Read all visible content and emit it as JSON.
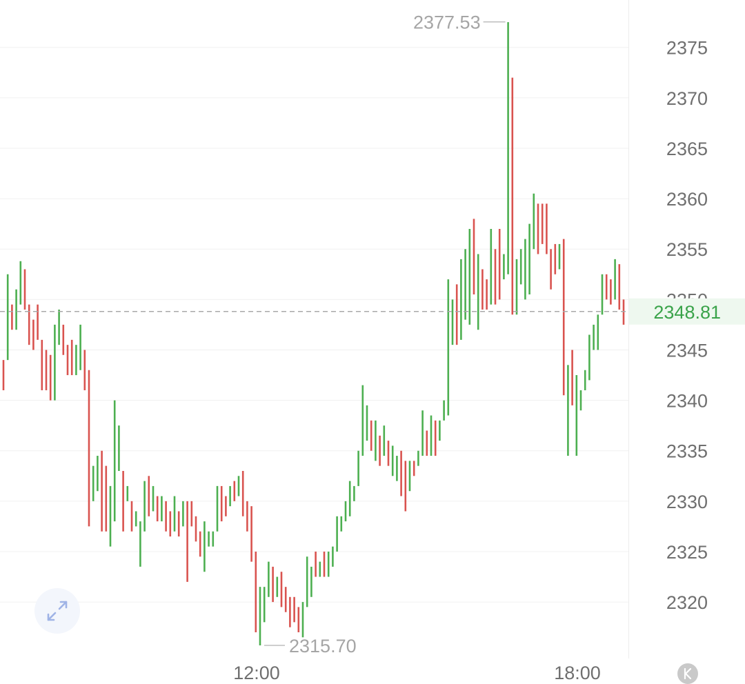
{
  "chart_data": {
    "type": "ohlc",
    "ylim": [
      2314.4,
      2379.7
    ],
    "y_ticks": [
      "2320",
      "2325",
      "2330",
      "2335",
      "2340",
      "2345",
      "2350",
      "2355",
      "2360",
      "2365",
      "2370",
      "2375"
    ],
    "x_ticks": [
      "12:00",
      "18:00"
    ],
    "current_price": "2348.81",
    "max_label": "2377.53",
    "min_label": "2315.70",
    "up_color": "#4caf50",
    "down_color": "#d9534f",
    "bars": [
      {
        "high": 2344.0,
        "low": 2341.0,
        "dir": "down"
      },
      {
        "high": 2352.5,
        "low": 2344.0,
        "dir": "up"
      },
      {
        "high": 2349.5,
        "low": 2347.0,
        "dir": "down"
      },
      {
        "high": 2351.0,
        "low": 2347.0,
        "dir": "up"
      },
      {
        "high": 2353.8,
        "low": 2349.5,
        "dir": "up"
      },
      {
        "high": 2353.0,
        "low": 2349.0,
        "dir": "down"
      },
      {
        "high": 2349.5,
        "low": 2345.5,
        "dir": "down"
      },
      {
        "high": 2348.0,
        "low": 2345.0,
        "dir": "down"
      },
      {
        "high": 2349.5,
        "low": 2346.0,
        "dir": "down"
      },
      {
        "high": 2346.0,
        "low": 2341.0,
        "dir": "down"
      },
      {
        "high": 2345.0,
        "low": 2341.0,
        "dir": "down"
      },
      {
        "high": 2344.5,
        "low": 2340.0,
        "dir": "down"
      },
      {
        "high": 2347.5,
        "low": 2340.0,
        "dir": "up"
      },
      {
        "high": 2349.0,
        "low": 2345.5,
        "dir": "up"
      },
      {
        "high": 2347.5,
        "low": 2344.5,
        "dir": "down"
      },
      {
        "high": 2345.5,
        "low": 2342.5,
        "dir": "down"
      },
      {
        "high": 2346.0,
        "low": 2342.5,
        "dir": "down"
      },
      {
        "high": 2345.5,
        "low": 2342.5,
        "dir": "up"
      },
      {
        "high": 2347.5,
        "low": 2343.0,
        "dir": "up"
      },
      {
        "high": 2345.0,
        "low": 2341.0,
        "dir": "down"
      },
      {
        "high": 2343.0,
        "low": 2327.5,
        "dir": "down"
      },
      {
        "high": 2333.5,
        "low": 2330.0,
        "dir": "up"
      },
      {
        "high": 2334.5,
        "low": 2331.0,
        "dir": "up"
      },
      {
        "high": 2335.0,
        "low": 2327.0,
        "dir": "down"
      },
      {
        "high": 2333.5,
        "low": 2327.0,
        "dir": "down"
      },
      {
        "high": 2331.5,
        "low": 2325.5,
        "dir": "up"
      },
      {
        "high": 2340.0,
        "low": 2328.0,
        "dir": "up"
      },
      {
        "high": 2337.5,
        "low": 2333.0,
        "dir": "up"
      },
      {
        "high": 2333.0,
        "low": 2327.0,
        "dir": "down"
      },
      {
        "high": 2331.5,
        "low": 2330.0,
        "dir": "up"
      },
      {
        "high": 2330.0,
        "low": 2327.0,
        "dir": "down"
      },
      {
        "high": 2329.0,
        "low": 2327.5,
        "dir": "up"
      },
      {
        "high": 2328.0,
        "low": 2323.5,
        "dir": "up"
      },
      {
        "high": 2332.0,
        "low": 2327.0,
        "dir": "up"
      },
      {
        "high": 2332.5,
        "low": 2328.5,
        "dir": "down"
      },
      {
        "high": 2331.5,
        "low": 2329.0,
        "dir": "up"
      },
      {
        "high": 2330.5,
        "low": 2328.0,
        "dir": "down"
      },
      {
        "high": 2330.5,
        "low": 2328.0,
        "dir": "up"
      },
      {
        "high": 2330.0,
        "low": 2327.0,
        "dir": "down"
      },
      {
        "high": 2329.0,
        "low": 2326.5,
        "dir": "down"
      },
      {
        "high": 2330.5,
        "low": 2327.0,
        "dir": "up"
      },
      {
        "high": 2329.0,
        "low": 2326.5,
        "dir": "down"
      },
      {
        "high": 2330.0,
        "low": 2327.5,
        "dir": "up"
      },
      {
        "high": 2330.0,
        "low": 2322.0,
        "dir": "down"
      },
      {
        "high": 2330.0,
        "low": 2327.5,
        "dir": "down"
      },
      {
        "high": 2328.5,
        "low": 2326.0,
        "dir": "down"
      },
      {
        "high": 2327.0,
        "low": 2324.5,
        "dir": "down"
      },
      {
        "high": 2328.0,
        "low": 2323.0,
        "dir": "up"
      },
      {
        "high": 2327.0,
        "low": 2325.5,
        "dir": "up"
      },
      {
        "high": 2327.0,
        "low": 2325.5,
        "dir": "up"
      },
      {
        "high": 2331.5,
        "low": 2327.0,
        "dir": "up"
      },
      {
        "high": 2331.5,
        "low": 2328.0,
        "dir": "down"
      },
      {
        "high": 2330.5,
        "low": 2328.5,
        "dir": "down"
      },
      {
        "high": 2331.5,
        "low": 2329.5,
        "dir": "up"
      },
      {
        "high": 2332.0,
        "low": 2330.0,
        "dir": "down"
      },
      {
        "high": 2332.5,
        "low": 2330.5,
        "dir": "up"
      },
      {
        "high": 2333.0,
        "low": 2328.5,
        "dir": "down"
      },
      {
        "high": 2330.0,
        "low": 2327.0,
        "dir": "down"
      },
      {
        "high": 2329.5,
        "low": 2324.0,
        "dir": "down"
      },
      {
        "high": 2325.0,
        "low": 2317.0,
        "dir": "down"
      },
      {
        "high": 2321.5,
        "low": 2315.7,
        "dir": "up"
      },
      {
        "high": 2321.5,
        "low": 2318.0,
        "dir": "up"
      },
      {
        "high": 2324.0,
        "low": 2320.5,
        "dir": "up"
      },
      {
        "high": 2323.5,
        "low": 2320.0,
        "dir": "down"
      },
      {
        "high": 2322.5,
        "low": 2320.5,
        "dir": "up"
      },
      {
        "high": 2323.0,
        "low": 2319.5,
        "dir": "down"
      },
      {
        "high": 2321.5,
        "low": 2319.0,
        "dir": "down"
      },
      {
        "high": 2320.5,
        "low": 2317.5,
        "dir": "down"
      },
      {
        "high": 2320.5,
        "low": 2318.0,
        "dir": "down"
      },
      {
        "high": 2319.5,
        "low": 2317.0,
        "dir": "down"
      },
      {
        "high": 2320.0,
        "low": 2316.5,
        "dir": "up"
      },
      {
        "high": 2324.5,
        "low": 2319.5,
        "dir": "up"
      },
      {
        "high": 2323.5,
        "low": 2320.5,
        "dir": "up"
      },
      {
        "high": 2325.0,
        "low": 2322.5,
        "dir": "down"
      },
      {
        "high": 2324.0,
        "low": 2322.5,
        "dir": "up"
      },
      {
        "high": 2325.0,
        "low": 2322.5,
        "dir": "down"
      },
      {
        "high": 2325.0,
        "low": 2322.5,
        "dir": "up"
      },
      {
        "high": 2325.5,
        "low": 2323.5,
        "dir": "up"
      },
      {
        "high": 2328.5,
        "low": 2325.0,
        "dir": "up"
      },
      {
        "high": 2328.5,
        "low": 2327.0,
        "dir": "up"
      },
      {
        "high": 2330.0,
        "low": 2328.0,
        "dir": "up"
      },
      {
        "high": 2332.0,
        "low": 2328.5,
        "dir": "up"
      },
      {
        "high": 2331.5,
        "low": 2330.0,
        "dir": "up"
      },
      {
        "high": 2335.0,
        "low": 2331.5,
        "dir": "up"
      },
      {
        "high": 2341.5,
        "low": 2334.5,
        "dir": "up"
      },
      {
        "high": 2339.5,
        "low": 2336.0,
        "dir": "up"
      },
      {
        "high": 2338.0,
        "low": 2335.0,
        "dir": "down"
      },
      {
        "high": 2338.0,
        "low": 2334.0,
        "dir": "up"
      },
      {
        "high": 2336.5,
        "low": 2333.5,
        "dir": "down"
      },
      {
        "high": 2337.5,
        "low": 2334.5,
        "dir": "up"
      },
      {
        "high": 2336.0,
        "low": 2333.5,
        "dir": "down"
      },
      {
        "high": 2335.5,
        "low": 2332.5,
        "dir": "up"
      },
      {
        "high": 2334.5,
        "low": 2332.0,
        "dir": "up"
      },
      {
        "high": 2335.0,
        "low": 2330.5,
        "dir": "down"
      },
      {
        "high": 2334.0,
        "low": 2329.0,
        "dir": "down"
      },
      {
        "high": 2334.0,
        "low": 2331.0,
        "dir": "up"
      },
      {
        "high": 2334.0,
        "low": 2332.5,
        "dir": "down"
      },
      {
        "high": 2335.0,
        "low": 2333.5,
        "dir": "up"
      },
      {
        "high": 2339.0,
        "low": 2334.5,
        "dir": "up"
      },
      {
        "high": 2337.0,
        "low": 2334.5,
        "dir": "down"
      },
      {
        "high": 2338.5,
        "low": 2334.5,
        "dir": "up"
      },
      {
        "high": 2338.0,
        "low": 2334.5,
        "dir": "down"
      },
      {
        "high": 2338.0,
        "low": 2336.0,
        "dir": "up"
      },
      {
        "high": 2340.0,
        "low": 2338.0,
        "dir": "up"
      },
      {
        "high": 2352.0,
        "low": 2338.5,
        "dir": "up"
      },
      {
        "high": 2350.0,
        "low": 2345.5,
        "dir": "up"
      },
      {
        "high": 2351.5,
        "low": 2345.5,
        "dir": "down"
      },
      {
        "high": 2354.0,
        "low": 2346.0,
        "dir": "up"
      },
      {
        "high": 2355.0,
        "low": 2348.0,
        "dir": "up"
      },
      {
        "high": 2357.0,
        "low": 2347.5,
        "dir": "up"
      },
      {
        "high": 2358.0,
        "low": 2350.5,
        "dir": "down"
      },
      {
        "high": 2354.5,
        "low": 2347.0,
        "dir": "up"
      },
      {
        "high": 2353.0,
        "low": 2349.0,
        "dir": "down"
      },
      {
        "high": 2352.0,
        "low": 2349.0,
        "dir": "down"
      },
      {
        "high": 2357.0,
        "low": 2349.5,
        "dir": "up"
      },
      {
        "high": 2355.0,
        "low": 2349.5,
        "dir": "down"
      },
      {
        "high": 2357.0,
        "low": 2350.0,
        "dir": "down"
      },
      {
        "high": 2354.5,
        "low": 2352.0,
        "dir": "up"
      },
      {
        "high": 2377.5,
        "low": 2352.5,
        "dir": "up"
      },
      {
        "high": 2372.0,
        "low": 2348.5,
        "dir": "down"
      },
      {
        "high": 2354.0,
        "low": 2348.5,
        "dir": "up"
      },
      {
        "high": 2355.0,
        "low": 2351.5,
        "dir": "up"
      },
      {
        "high": 2356.0,
        "low": 2350.0,
        "dir": "up"
      },
      {
        "high": 2357.5,
        "low": 2350.5,
        "dir": "up"
      },
      {
        "high": 2360.5,
        "low": 2355.0,
        "dir": "up"
      },
      {
        "high": 2359.5,
        "low": 2354.5,
        "dir": "down"
      },
      {
        "high": 2359.5,
        "low": 2355.5,
        "dir": "down"
      },
      {
        "high": 2359.5,
        "low": 2354.5,
        "dir": "down"
      },
      {
        "high": 2355.0,
        "low": 2351.0,
        "dir": "down"
      },
      {
        "high": 2355.5,
        "low": 2352.5,
        "dir": "down"
      },
      {
        "high": 2355.5,
        "low": 2353.0,
        "dir": "up"
      },
      {
        "high": 2356.0,
        "low": 2340.5,
        "dir": "down"
      },
      {
        "high": 2343.5,
        "low": 2334.5,
        "dir": "up"
      },
      {
        "high": 2345.0,
        "low": 2339.5,
        "dir": "down"
      },
      {
        "high": 2342.5,
        "low": 2334.5,
        "dir": "up"
      },
      {
        "high": 2341.0,
        "low": 2339.0,
        "dir": "up"
      },
      {
        "high": 2343.0,
        "low": 2341.0,
        "dir": "up"
      },
      {
        "high": 2346.5,
        "low": 2342.0,
        "dir": "up"
      },
      {
        "high": 2347.5,
        "low": 2345.0,
        "dir": "up"
      },
      {
        "high": 2348.5,
        "low": 2345.0,
        "dir": "up"
      },
      {
        "high": 2352.5,
        "low": 2348.5,
        "dir": "up"
      },
      {
        "high": 2352.5,
        "low": 2350.0,
        "dir": "down"
      },
      {
        "high": 2352.0,
        "low": 2349.5,
        "dir": "down"
      },
      {
        "high": 2354.0,
        "low": 2350.0,
        "dir": "up"
      },
      {
        "high": 2353.5,
        "low": 2349.0,
        "dir": "down"
      },
      {
        "high": 2350.0,
        "low": 2347.5,
        "dir": "down"
      }
    ]
  },
  "controls": {
    "expand_icon": "expand-arrows-icon",
    "kline_icon": "k-letter-icon"
  }
}
